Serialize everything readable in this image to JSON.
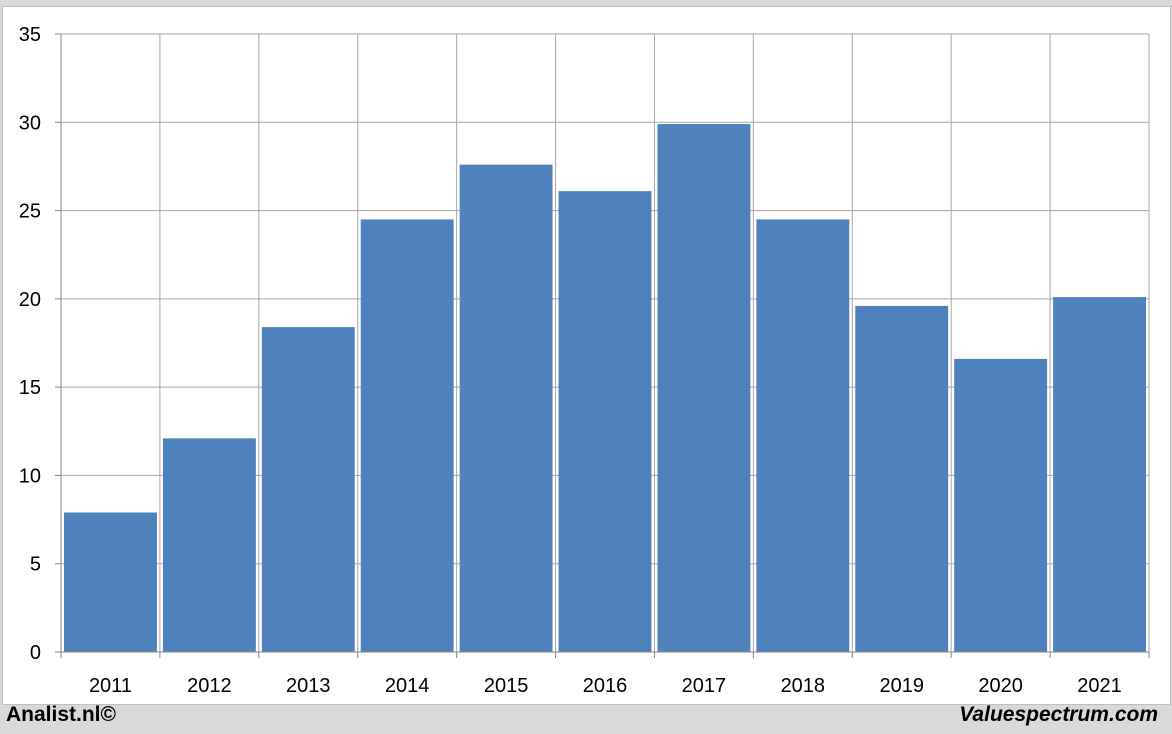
{
  "chart_data": {
    "type": "bar",
    "categories": [
      "2011",
      "2012",
      "2013",
      "2014",
      "2015",
      "2016",
      "2017",
      "2018",
      "2019",
      "2020",
      "2021"
    ],
    "values": [
      7.9,
      12.1,
      18.4,
      24.5,
      27.6,
      26.1,
      29.9,
      24.5,
      19.6,
      16.6,
      20.1
    ],
    "title": "",
    "xlabel": "",
    "ylabel": "",
    "ylim": [
      0,
      35
    ],
    "yticks": [
      0,
      5,
      10,
      15,
      20,
      25,
      30,
      35
    ],
    "grid": true,
    "bar_color": "#4f81bd"
  },
  "footer": {
    "left_text": "Analist.nl©",
    "right_text": "Valuespectrum.com"
  },
  "colors": {
    "background": "#d9d9d9",
    "plot_background": "#ffffff",
    "gridline": "#a6a6a6",
    "bar": "#4f81bd"
  }
}
